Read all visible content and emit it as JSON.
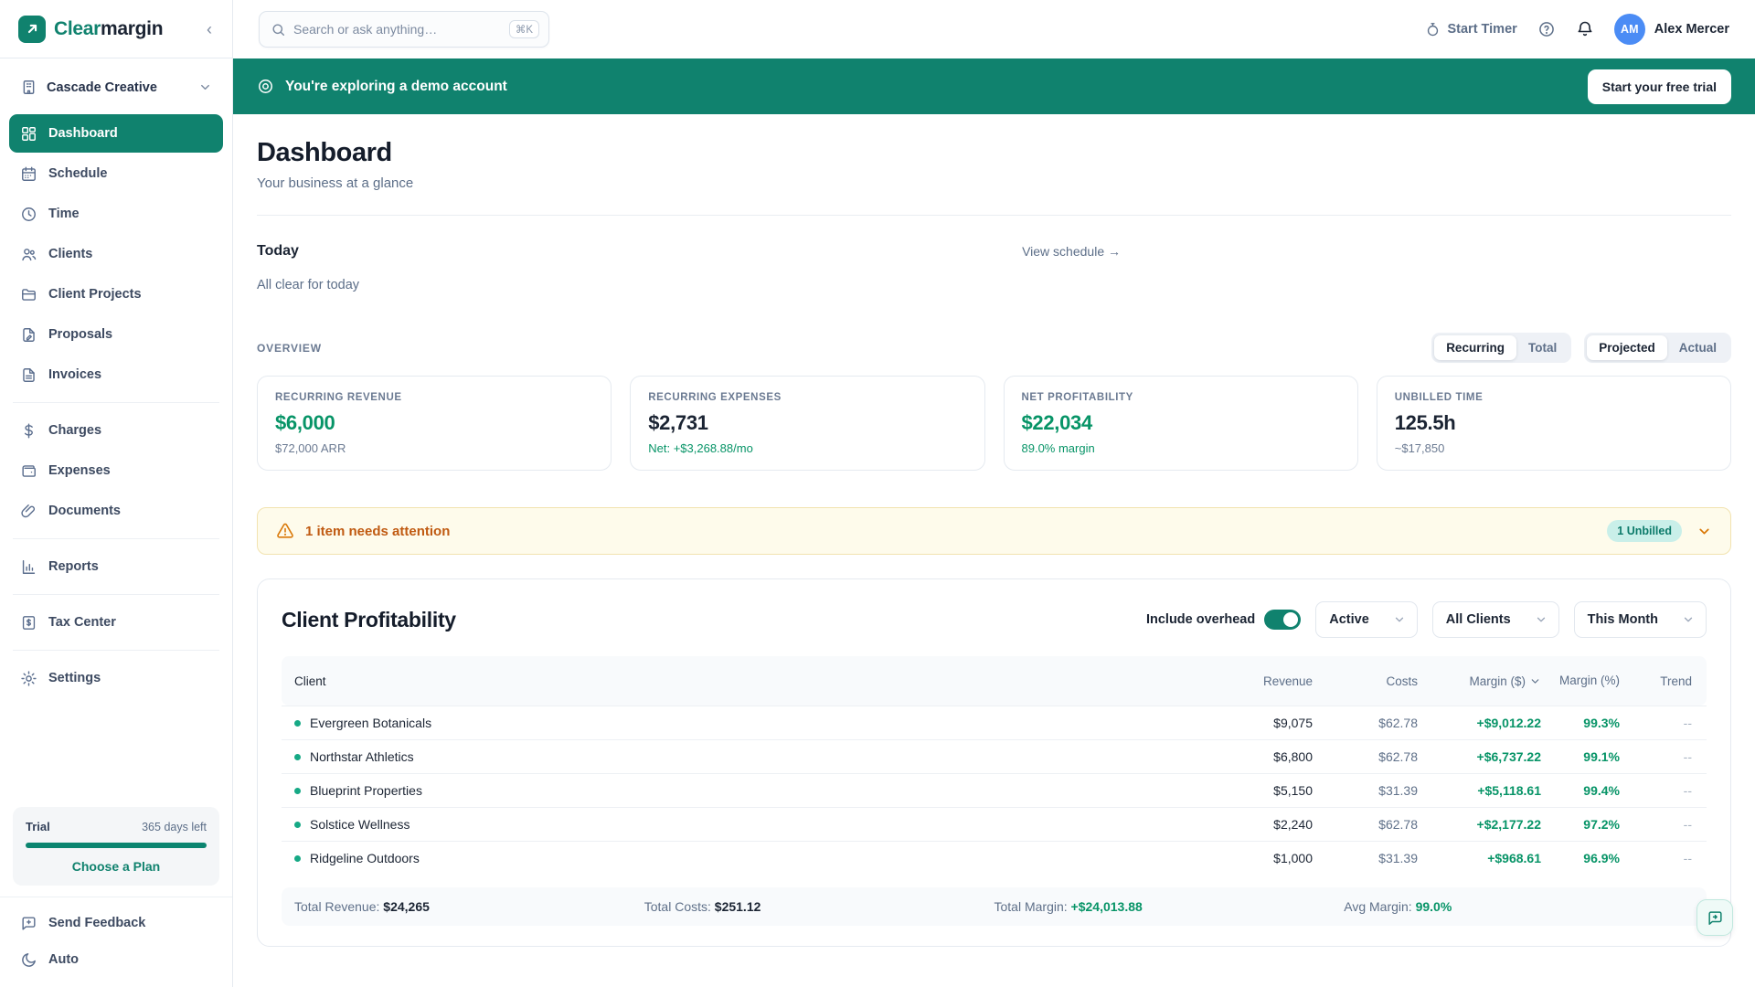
{
  "brand": {
    "name_part1": "Clear",
    "name_part2": "margin"
  },
  "topbar": {
    "search_placeholder": "Search or ask anything…",
    "search_shortcut": "⌘K",
    "start_timer_label": "Start Timer",
    "user_initials": "AM",
    "user_name": "Alex Mercer"
  },
  "banner": {
    "text": "You're exploring a demo account",
    "cta_label": "Start your free trial"
  },
  "sidebar": {
    "workspace_name": "Cascade Creative",
    "nav": [
      {
        "label": "Dashboard",
        "icon": "grid-icon",
        "active": true
      },
      {
        "label": "Schedule",
        "icon": "calendar-icon"
      },
      {
        "label": "Time",
        "icon": "clock-icon"
      },
      {
        "label": "Clients",
        "icon": "users-icon"
      },
      {
        "label": "Client Projects",
        "icon": "folder-icon"
      },
      {
        "label": "Proposals",
        "icon": "file-pen-icon"
      },
      {
        "label": "Invoices",
        "icon": "invoice-icon",
        "divider_after": true
      },
      {
        "label": "Charges",
        "icon": "dollar-icon"
      },
      {
        "label": "Expenses",
        "icon": "wallet-icon"
      },
      {
        "label": "Documents",
        "icon": "paperclip-icon",
        "divider_after": true
      },
      {
        "label": "Reports",
        "icon": "chart-icon",
        "divider_after": true
      },
      {
        "label": "Tax Center",
        "icon": "tax-icon",
        "divider_after": true
      },
      {
        "label": "Settings",
        "icon": "gear-icon"
      }
    ],
    "trial": {
      "label": "Trial",
      "days_left": "365 days left",
      "progress_pct": 100,
      "cta_label": "Choose a Plan"
    },
    "footer": [
      {
        "label": "Send Feedback",
        "icon": "feedback-icon"
      },
      {
        "label": "Auto",
        "icon": "moon-icon"
      }
    ]
  },
  "page": {
    "title": "Dashboard",
    "subtitle": "Your business at a glance"
  },
  "today": {
    "title": "Today",
    "link_label": "View schedule →",
    "empty_text": "All clear for today"
  },
  "overview": {
    "label": "OVERVIEW",
    "toggles": [
      {
        "options": [
          "Recurring",
          "Total"
        ],
        "selected": 0
      },
      {
        "options": [
          "Projected",
          "Actual"
        ],
        "selected": 0
      }
    ],
    "cards": [
      {
        "label": "RECURRING REVENUE",
        "value": "$6,000",
        "sub": "$72,000 ARR",
        "value_class": "green",
        "sub_class": "gray"
      },
      {
        "label": "RECURRING EXPENSES",
        "value": "$2,731",
        "sub": "Net: +$3,268.88/mo",
        "value_class": "dark",
        "sub_class": "green"
      },
      {
        "label": "NET PROFITABILITY",
        "value": "$22,034",
        "sub": "89.0% margin",
        "value_class": "green",
        "sub_class": "green"
      },
      {
        "label": "UNBILLED TIME",
        "value": "125.5h",
        "sub": "~$17,850",
        "value_class": "dark",
        "sub_class": "gray"
      }
    ]
  },
  "attention": {
    "text": "1 item needs attention",
    "badge": "1 Unbilled"
  },
  "profitability": {
    "title": "Client Profitability",
    "overhead_label": "Include overhead",
    "overhead_on": true,
    "filters": [
      "Active",
      "All Clients",
      "This Month"
    ],
    "columns": {
      "client": "Client",
      "revenue": "Revenue",
      "costs": "Costs",
      "margin": "Margin ($)",
      "margin_pct": "Margin (%)",
      "trend": "Trend"
    },
    "rows": [
      {
        "name": "Evergreen Botanicals",
        "revenue": "$9,075",
        "costs": "$62.78",
        "margin": "+$9,012.22",
        "margin_pct": "99.3%",
        "trend": "--",
        "row_class": "highlight"
      },
      {
        "name": "Northstar Athletics",
        "revenue": "$6,800",
        "costs": "$62.78",
        "margin": "+$6,737.22",
        "margin_pct": "99.1%",
        "trend": "--"
      },
      {
        "name": "Blueprint Properties",
        "revenue": "$5,150",
        "costs": "$31.39",
        "margin": "+$5,118.61",
        "margin_pct": "99.4%",
        "trend": "--"
      },
      {
        "name": "Solstice Wellness",
        "revenue": "$2,240",
        "costs": "$62.78",
        "margin": "+$2,177.22",
        "margin_pct": "97.2%",
        "trend": "--"
      },
      {
        "name": "Ridgeline Outdoors",
        "revenue": "$1,000",
        "costs": "$31.39",
        "margin": "+$968.61",
        "margin_pct": "96.9%",
        "trend": "--"
      }
    ],
    "totals": {
      "revenue_label": "Total Revenue:",
      "revenue": "$24,265",
      "costs_label": "Total Costs:",
      "costs": "$251.12",
      "margin_label": "Total Margin:",
      "margin": "+$24,013.88",
      "avg_label": "Avg Margin:",
      "avg": "99.0%"
    }
  },
  "colors": {
    "brand_teal": "#10826E",
    "money_green": "#079467",
    "warning_text": "#C05A11",
    "warning_bg": "#FEFBEB",
    "avatar_blue": "#4B8CF5"
  }
}
